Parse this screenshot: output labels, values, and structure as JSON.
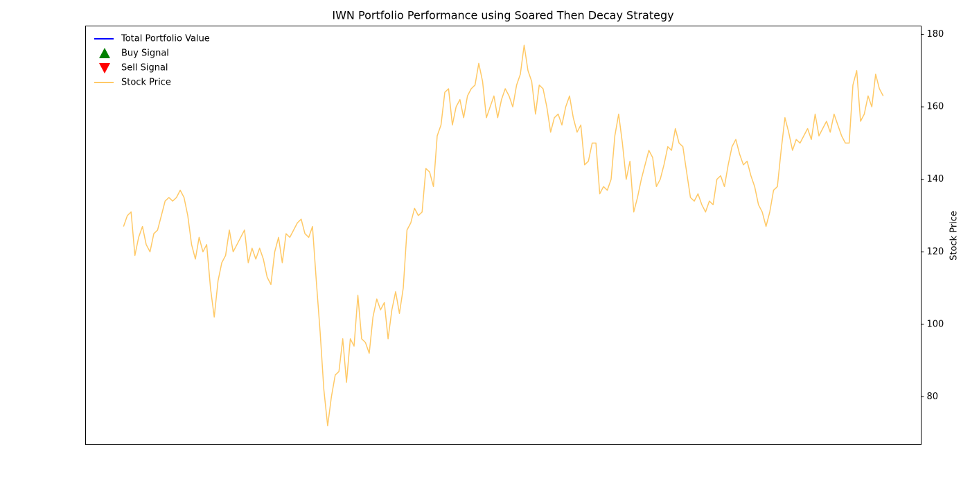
{
  "chart_data": {
    "type": "line",
    "title": "IWN Portfolio Performance using Soared Then Decay Strategy",
    "y2_label": "Stock Price",
    "y2lim": [
      66.8,
      182.3
    ],
    "y2ticks": [
      80,
      100,
      120,
      140,
      160,
      180
    ],
    "legend": "upper left",
    "series": [
      {
        "name": "Total Portfolio Value",
        "color": "#0000ff",
        "marker": "line",
        "values": []
      },
      {
        "name": "Buy Signal",
        "color": "#008000",
        "marker": "^",
        "values": []
      },
      {
        "name": "Sell Signal",
        "color": "#ff0000",
        "marker": "v",
        "values": []
      },
      {
        "name": "Stock Price",
        "color": "#ffa500",
        "alpha": 0.6,
        "marker": "line",
        "axis": "y2",
        "values": [
          127,
          130,
          131,
          119,
          124,
          127,
          122,
          120,
          125,
          126,
          130,
          134,
          135,
          134,
          135,
          137,
          135,
          130,
          122,
          118,
          124,
          120,
          122,
          110,
          102,
          112,
          117,
          119,
          126,
          120,
          122,
          124,
          126,
          117,
          121,
          118,
          121,
          118,
          113,
          111,
          120,
          124,
          117,
          125,
          124,
          126,
          128,
          129,
          125,
          124,
          127,
          112,
          98,
          82,
          72,
          80,
          86,
          87,
          96,
          84,
          96,
          94,
          108,
          96,
          95,
          92,
          102,
          107,
          104,
          106,
          96,
          104,
          109,
          103,
          110,
          126,
          128,
          132,
          130,
          131,
          143,
          142,
          138,
          152,
          155,
          164,
          165,
          155,
          160,
          162,
          157,
          163,
          165,
          166,
          172,
          167,
          157,
          160,
          163,
          157,
          162,
          165,
          163,
          160,
          166,
          169,
          177,
          170,
          167,
          158,
          166,
          165,
          160,
          153,
          157,
          158,
          155,
          160,
          163,
          157,
          153,
          155,
          144,
          145,
          150,
          150,
          136,
          138,
          137,
          140,
          152,
          158,
          150,
          140,
          145,
          131,
          135,
          140,
          144,
          148,
          146,
          138,
          140,
          144,
          149,
          148,
          154,
          150,
          149,
          142,
          135,
          134,
          136,
          133,
          131,
          134,
          133,
          140,
          141,
          138,
          144,
          149,
          151,
          147,
          144,
          145,
          141,
          138,
          133,
          131,
          127,
          131,
          137,
          138,
          148,
          157,
          153,
          148,
          151,
          150,
          152,
          154,
          151,
          158,
          152,
          154,
          156,
          153,
          158,
          155,
          152,
          150,
          150,
          166,
          170,
          156,
          158,
          163,
          160,
          169,
          165,
          163
        ]
      }
    ]
  }
}
